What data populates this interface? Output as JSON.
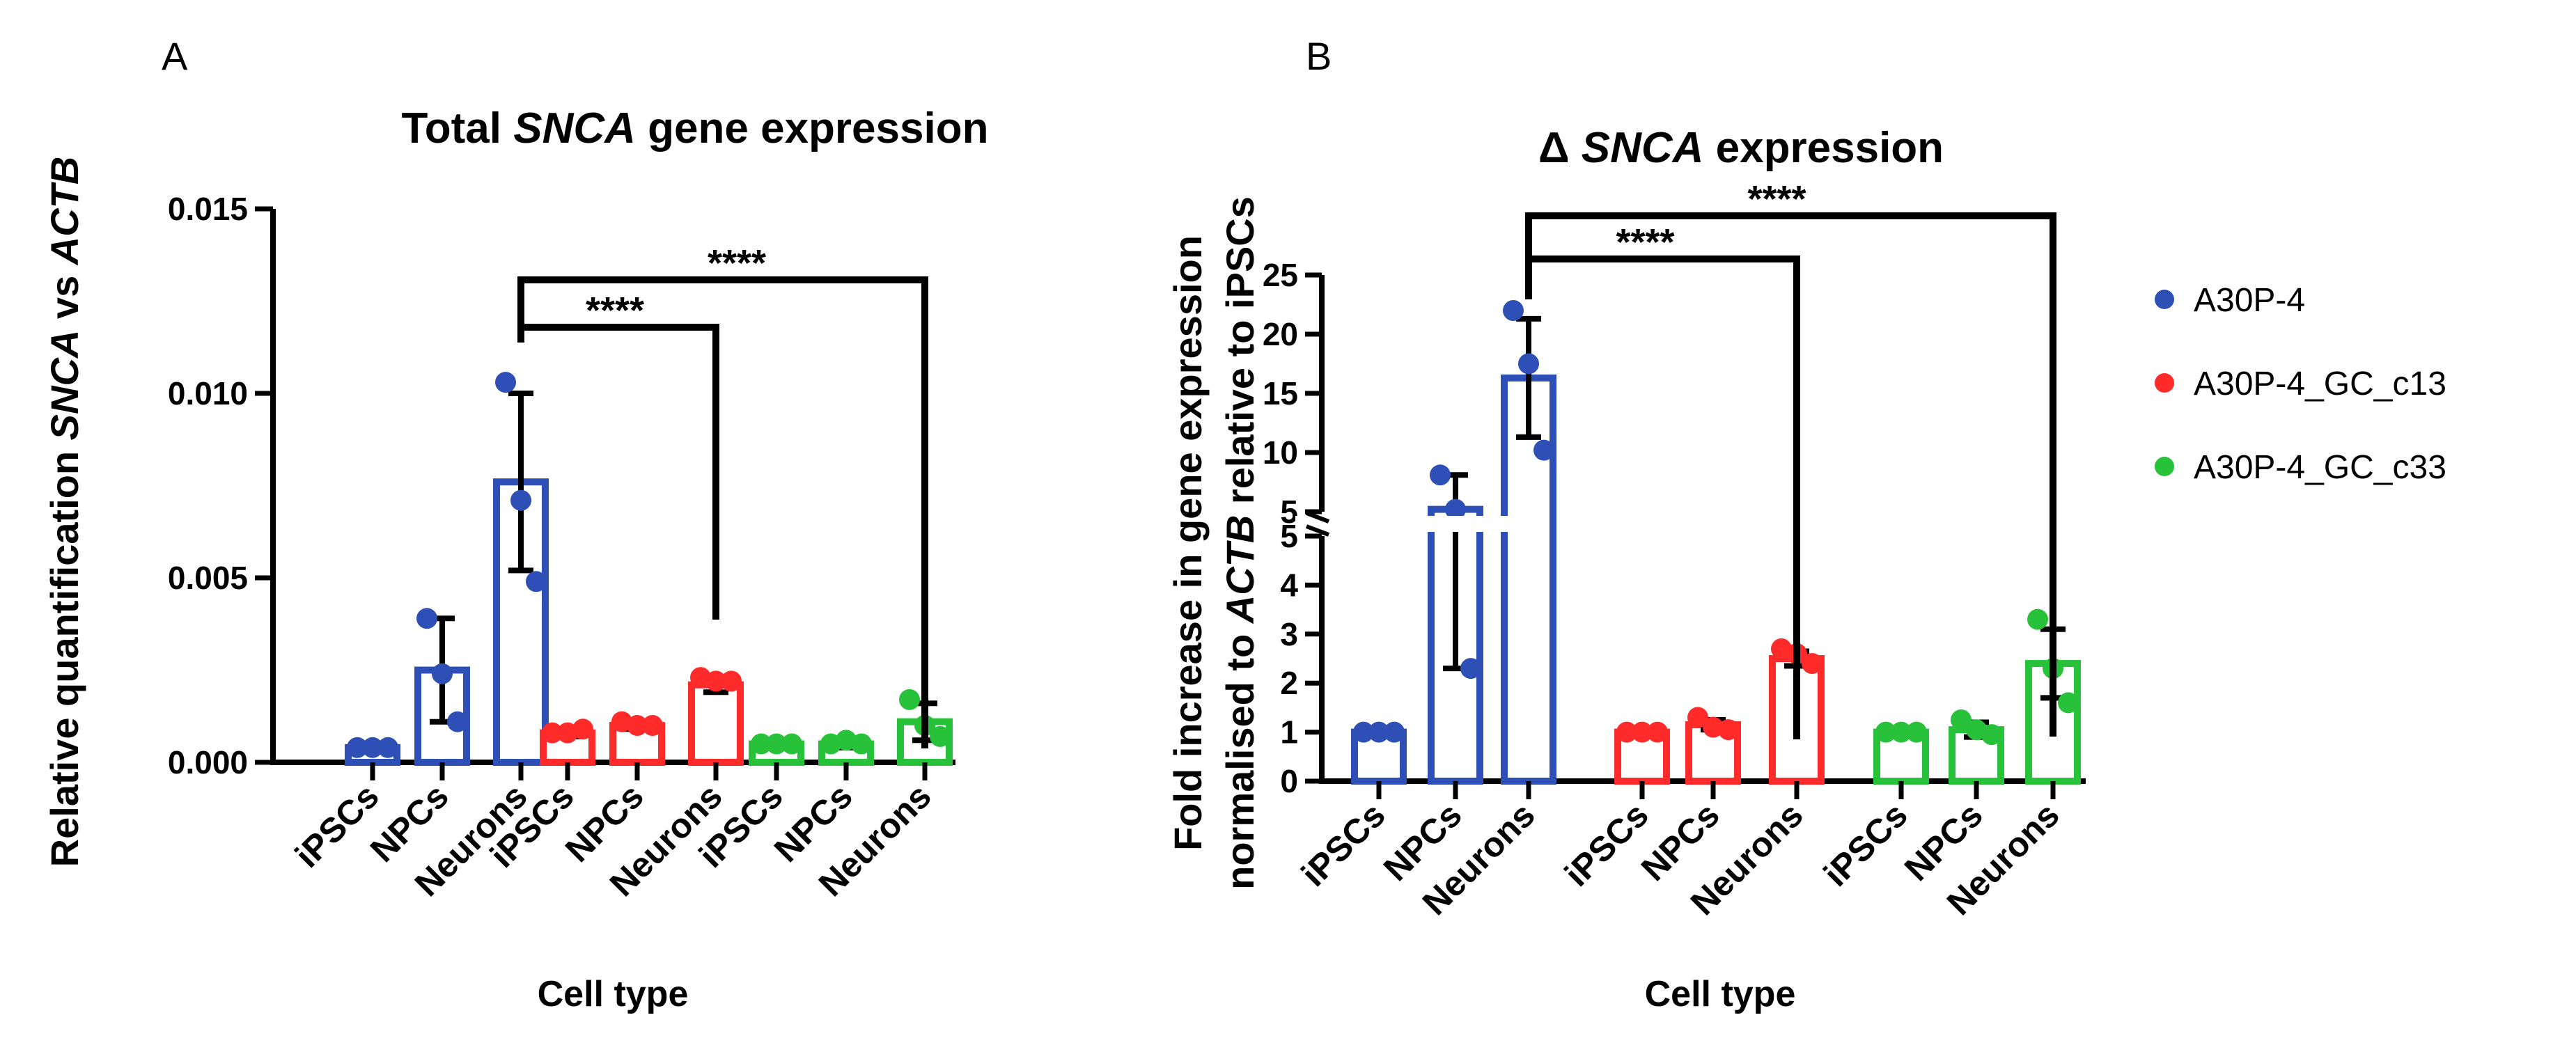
{
  "colors": {
    "A30P-4": "#2e4fb5",
    "A30P-4_GC_c13": "#ff2a2a",
    "A30P-4_GC_c33": "#27c23a"
  },
  "legend": [
    {
      "name": "A30P-4",
      "color": "#2e4fb5"
    },
    {
      "name": "A30P-4_GC_c13",
      "color": "#ff2a2a"
    },
    {
      "name": "A30P-4_GC_c33",
      "color": "#27c23a"
    }
  ],
  "chart_data": [
    {
      "type": "bar",
      "panel": "A",
      "title_parts": [
        "Total ",
        "SNCA",
        " gene expression"
      ],
      "ylabel_parts": [
        "Relative quantification ",
        "SNCA",
        " vs ",
        "ACTB"
      ],
      "xlabel": "Cell type",
      "ylim": [
        0,
        0.015
      ],
      "yticks": [
        0,
        0.005,
        0.01,
        0.015
      ],
      "ytick_labels": [
        "0.000",
        "0.005",
        "0.010",
        "0.015"
      ],
      "categories": [
        "iPSCs",
        "NPCs",
        "Neurons"
      ],
      "groups": [
        {
          "name": "A30P-4",
          "means": [
            0.0004,
            0.0025,
            0.0076
          ],
          "sd": [
            0.0001,
            0.0014,
            0.0024
          ],
          "points": [
            [
              0.0004,
              0.0004,
              0.0004
            ],
            [
              0.0039,
              0.0024,
              0.0011
            ],
            [
              0.0103,
              0.0071,
              0.0049
            ]
          ]
        },
        {
          "name": "A30P-4_GC_c13",
          "means": [
            0.0008,
            0.001,
            0.0021
          ],
          "sd": [
            0.0001,
            0.0001,
            0.0002
          ],
          "points": [
            [
              0.0008,
              0.0008,
              0.0009
            ],
            [
              0.0011,
              0.001,
              0.001
            ],
            [
              0.0023,
              0.0022,
              0.0022
            ]
          ]
        },
        {
          "name": "A30P-4_GC_c33",
          "means": [
            0.0005,
            0.0005,
            0.0011
          ],
          "sd": [
            0.0001,
            0.0001,
            0.0005
          ],
          "points": [
            [
              0.0005,
              0.0005,
              0.0005
            ],
            [
              0.0005,
              0.0006,
              0.0005
            ],
            [
              0.0017,
              0.001,
              0.0007
            ]
          ]
        }
      ],
      "comparisons": [
        {
          "from": "A30P-4 Neurons",
          "to": "A30P-4_GC_c13 Neurons",
          "label": "****"
        },
        {
          "from": "A30P-4 Neurons",
          "to": "A30P-4_GC_c33 Neurons",
          "label": "****"
        }
      ]
    },
    {
      "type": "bar",
      "panel": "B",
      "title_parts": [
        "Δ ",
        "SNCA",
        " expression"
      ],
      "ylabel_line1": "Fold increase in gene expression",
      "ylabel_line2_parts": [
        "normalised to ",
        "ACTB",
        " relative to iPSCs"
      ],
      "xlabel": "Cell type",
      "broken_axis": {
        "lower": [
          0,
          5
        ],
        "upper": [
          5,
          25
        ]
      },
      "yticks_lower": [
        0,
        1,
        2,
        3,
        4,
        5
      ],
      "yticks_upper": [
        5,
        10,
        15,
        20,
        25
      ],
      "categories": [
        "iPSCs",
        "NPCs",
        "Neurons"
      ],
      "groups": [
        {
          "name": "A30P-4",
          "means": [
            1.0,
            5.2,
            16.3
          ],
          "sd": [
            0.0,
            2.9,
            5.0
          ],
          "points": [
            [
              1.0,
              1.0,
              1.0
            ],
            [
              8.1,
              5.2,
              2.3
            ],
            [
              22.0,
              17.5,
              10.2
            ]
          ]
        },
        {
          "name": "A30P-4_GC_c13",
          "means": [
            1.0,
            1.15,
            2.5
          ],
          "sd": [
            0.0,
            0.1,
            0.15
          ],
          "points": [
            [
              1.0,
              1.0,
              1.0
            ],
            [
              1.3,
              1.1,
              1.05
            ],
            [
              2.7,
              2.6,
              2.4
            ]
          ]
        },
        {
          "name": "A30P-4_GC_c33",
          "means": [
            1.0,
            1.05,
            2.4
          ],
          "sd": [
            0.0,
            0.15,
            0.7
          ],
          "points": [
            [
              1.0,
              1.0,
              1.0
            ],
            [
              1.25,
              1.05,
              0.95
            ],
            [
              3.3,
              2.3,
              1.6
            ]
          ]
        }
      ],
      "comparisons": [
        {
          "from": "A30P-4 Neurons",
          "to": "A30P-4_GC_c13 Neurons",
          "label": "****"
        },
        {
          "from": "A30P-4 Neurons",
          "to": "A30P-4_GC_c33 Neurons",
          "label": "****"
        }
      ]
    }
  ]
}
